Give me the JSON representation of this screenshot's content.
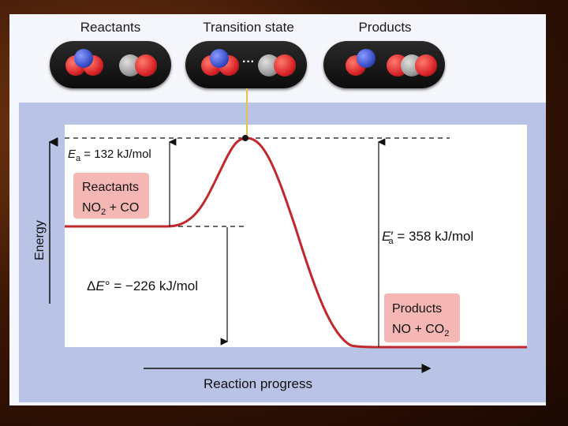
{
  "molecules": {
    "reactants_label": "Reactants",
    "transition_label": "Transition state",
    "products_label": "Products",
    "transition_dots": "···"
  },
  "chart": {
    "ea_label": "E",
    "ea_sub": "a",
    "ea_value": " = 132 kJ/mol",
    "reactants_title": "Reactants",
    "reactants_formula": "NO",
    "reactants_formula_sub": "2",
    "reactants_formula_rest": " + CO",
    "delta_e_prefix": "Δ",
    "delta_e_symbol": "E",
    "delta_e_degree": "°",
    "delta_e_value": " = −226 kJ/mol",
    "ea_prime_label": "E",
    "ea_prime_mark": "′",
    "ea_prime_sub": "a",
    "ea_prime_value": " = 358 kJ/mol",
    "products_title": "Products",
    "products_formula": "NO + CO",
    "products_formula_sub": "2",
    "y_axis_label": "Energy",
    "x_axis_label": "Reaction progress"
  },
  "colors": {
    "curve": "#c0282c",
    "callout_fill": "#f5b7b4",
    "oxygen": "#d8242a",
    "nitrogen": "#3a4fc8",
    "carbon": "#8a8a8a"
  }
}
